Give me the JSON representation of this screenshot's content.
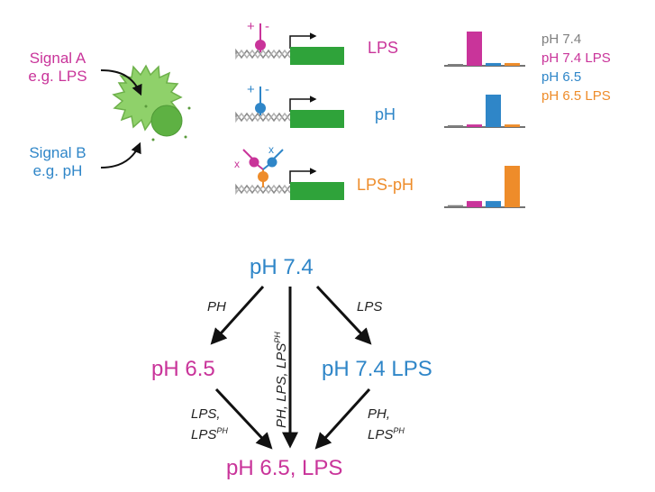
{
  "colors": {
    "magenta": "#c9349a",
    "blue": "#2f86c8",
    "orange": "#ee8c2a",
    "gray": "#7f7f7f",
    "green": "#2fa33a",
    "cell": "#8fd16a",
    "text_dark": "#222222"
  },
  "signals": {
    "a": {
      "line1": "Signal A",
      "line2": "e.g. LPS"
    },
    "b": {
      "line1": "Signal B",
      "line2": "e.g. pH"
    }
  },
  "constructs": [
    {
      "label": "LPS",
      "sign": "+|-"
    },
    {
      "label": "pH",
      "sign": "+|-"
    },
    {
      "label": "LPS-pH",
      "sign": "x x"
    }
  ],
  "legend": [
    "pH 7.4",
    "pH 7.4 LPS",
    "pH 6.5",
    "pH 6.5 LPS"
  ],
  "bar_charts": [
    {
      "construct": "LPS",
      "values": [
        0.05,
        1.0,
        0.08,
        0.08
      ]
    },
    {
      "construct": "pH",
      "values": [
        0.05,
        0.08,
        1.0,
        0.08
      ]
    },
    {
      "construct": "LPS-pH",
      "values": [
        0.05,
        0.15,
        0.15,
        1.0
      ]
    }
  ],
  "flow": {
    "top": "pH 7.4",
    "left": "pH 6.5",
    "right": "pH 7.4 LPS",
    "bottom": "pH 6.5, LPS",
    "edge_top_left": "PH",
    "edge_top_right": "LPS",
    "edge_center": {
      "text": "PH, LPS, LPS",
      "sup": "PH"
    },
    "edge_left_bottom": {
      "line1": "LPS,",
      "line2": "LPS",
      "sup": "PH"
    },
    "edge_right_bottom": {
      "line1": "PH,",
      "line2": "LPS",
      "sup": "PH"
    }
  }
}
